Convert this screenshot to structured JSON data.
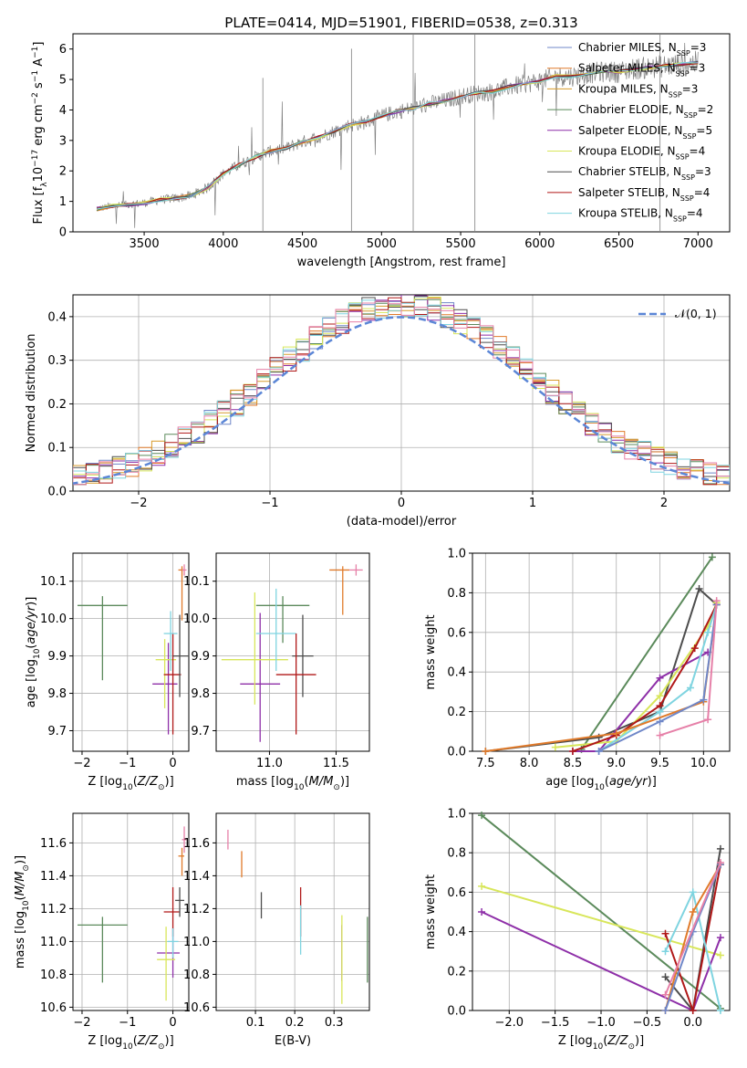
{
  "figure": {
    "title": "PLATE=0414, MJD=51901, FIBERID=0538, z=0.313"
  },
  "model_colors": {
    "Chabrier MILES": "#6f87c8",
    "Salpeter MILES": "#e07a2a",
    "Kroupa MILES": "#d89b2c",
    "Chabrier ELODIE": "#5b8a5b",
    "Salpeter ELODIE": "#8e2fa8",
    "Kroupa ELODIE": "#d8e65a",
    "Chabrier STELIB": "#4d4d4d",
    "Salpeter STELIB": "#b01818",
    "Kroupa STELIB": "#7fd4e0",
    "Pink": "#e680a8",
    "Normal fit": "#5b86d6"
  },
  "chart_data": [
    {
      "id": "spectrum",
      "type": "line",
      "xlabel": "wavelength [Angstrom, rest frame]",
      "ylabel": "Flux [f_λ10^-17 erg cm^-2 s^-1 A^-1]",
      "xlim": [
        3050,
        7200
      ],
      "ylim": [
        0,
        6.5
      ],
      "xticks": [
        3500,
        4000,
        4500,
        5000,
        5500,
        6000,
        6500,
        7000
      ],
      "yticks": [
        0,
        1,
        2,
        3,
        4,
        5,
        6
      ],
      "legend_position": "top-right",
      "legend": [
        {
          "name": "Chabrier MILES",
          "suffix": "=3",
          "color": "#6f87c8"
        },
        {
          "name": "Salpeter MILES",
          "suffix": "=3",
          "color": "#e07a2a"
        },
        {
          "name": "Kroupa MILES",
          "suffix": "=3",
          "color": "#d89b2c"
        },
        {
          "name": "Chabrier ELODIE",
          "suffix": "=2",
          "color": "#5b8a5b"
        },
        {
          "name": "Salpeter ELODIE",
          "suffix": "=5",
          "color": "#8e2fa8"
        },
        {
          "name": "Kroupa ELODIE",
          "suffix": "=4",
          "color": "#d8e65a"
        },
        {
          "name": "Chabrier STELIB",
          "suffix": "=3",
          "color": "#4d4d4d"
        },
        {
          "name": "Salpeter STELIB",
          "suffix": "=4",
          "color": "#b01818"
        },
        {
          "name": "Kroupa STELIB",
          "suffix": "=4",
          "color": "#7fd4e0"
        }
      ],
      "continuum": {
        "x": [
          3200,
          3300,
          3400,
          3500,
          3600,
          3700,
          3800,
          3900,
          4000,
          4100,
          4200,
          4300,
          4400,
          4500,
          4600,
          4700,
          4800,
          4900,
          5000,
          5100,
          5200,
          5300,
          5400,
          5500,
          5600,
          5700,
          5800,
          5900,
          6000,
          6100,
          6200,
          6300,
          6400,
          6500,
          6600,
          6700,
          6800,
          6900,
          7000
        ],
        "y": [
          0.75,
          0.85,
          0.9,
          0.95,
          1.05,
          1.1,
          1.2,
          1.45,
          1.9,
          2.2,
          2.45,
          2.65,
          2.75,
          2.95,
          3.1,
          3.3,
          3.5,
          3.6,
          3.8,
          3.95,
          4.05,
          4.2,
          4.3,
          4.45,
          4.55,
          4.6,
          4.75,
          4.85,
          4.95,
          5.1,
          5.1,
          5.2,
          5.25,
          5.25,
          5.35,
          5.4,
          5.45,
          5.5,
          5.55
        ]
      }
    },
    {
      "id": "residual_histogram",
      "type": "step",
      "xlabel": "(data-model)/error",
      "ylabel": "Normed distribution",
      "xlim": [
        -2.5,
        2.5
      ],
      "ylim": [
        0,
        0.45
      ],
      "xticks": [
        -2,
        -1,
        0,
        1,
        2
      ],
      "yticks": [
        0.0,
        0.1,
        0.2,
        0.3,
        0.4
      ],
      "grid": true,
      "legend_position": "top-right",
      "reference_curve": {
        "name": "𝒩(0, 1)",
        "mean": 0,
        "sigma": 1,
        "style": "dashed"
      }
    },
    {
      "id": "age_vs_metallicity",
      "type": "errorbar",
      "xlabel": "Z [log10(Z/Z☉)]",
      "ylabel": "age  [log10(age/yr)]",
      "xlim": [
        -2.2,
        0.35
      ],
      "ylim": [
        9.645,
        10.175
      ],
      "xticks": [
        -2,
        -1,
        0
      ],
      "yticks": [
        9.7,
        9.8,
        9.9,
        10.0,
        10.1
      ],
      "grid": true,
      "points": [
        {
          "model": "Chabrier ELODIE",
          "x": -1.55,
          "xerr": [
            0.55,
            0.55
          ],
          "y": 10.035,
          "yerr": [
            0.2,
            0.025
          ]
        },
        {
          "model": "Salpeter ELODIE",
          "x": -0.1,
          "xerr": [
            0.35,
            0.2
          ],
          "y": 9.825,
          "yerr": [
            0.135,
            0.11
          ]
        },
        {
          "model": "Kroupa ELODIE",
          "x": -0.18,
          "xerr": [
            0.2,
            0.25
          ],
          "y": 9.89,
          "yerr": [
            0.13,
            0.055
          ]
        },
        {
          "model": "Salpeter STELIB",
          "x": 0.0,
          "xerr": [
            0.2,
            0.18
          ],
          "y": 9.85,
          "yerr": [
            0.16,
            0.11
          ]
        },
        {
          "model": "Chabrier STELIB",
          "x": 0.15,
          "xerr": [
            0.15,
            0.2
          ],
          "y": 9.9,
          "yerr": [
            0.11,
            0.11
          ]
        },
        {
          "model": "Kroupa STELIB",
          "x": -0.05,
          "xerr": [
            0.15,
            0.15
          ],
          "y": 9.96,
          "yerr": [
            0.1,
            0.06
          ]
        },
        {
          "model": "Salpeter MILES",
          "x": 0.2,
          "xerr": [
            0.08,
            0.05
          ],
          "y": 10.13,
          "yerr": [
            0.135,
            0.01
          ]
        },
        {
          "model": "Pink",
          "x": 0.25,
          "xerr": [
            0.05,
            0.05
          ],
          "y": 10.13,
          "yerr": [
            0.015,
            0.015
          ]
        }
      ]
    },
    {
      "id": "age_vs_mass",
      "type": "errorbar",
      "xlabel": "mass [log10(M/M☉)]",
      "ylabel": "",
      "xlim": [
        10.6,
        11.75
      ],
      "ylim": [
        9.645,
        10.175
      ],
      "xticks": [
        11.0,
        11.5
      ],
      "yticks": [
        9.7,
        9.8,
        9.9,
        10.0,
        10.1
      ],
      "grid": true,
      "points": [
        {
          "model": "Chabrier ELODIE",
          "x": 11.1,
          "xerr": [
            0.2,
            0.2
          ],
          "y": 10.035,
          "yerr": [
            0.1,
            0.025
          ]
        },
        {
          "model": "Salpeter ELODIE",
          "x": 10.93,
          "xerr": [
            0.15,
            0.15
          ],
          "y": 9.825,
          "yerr": [
            0.155,
            0.19
          ]
        },
        {
          "model": "Kroupa ELODIE",
          "x": 10.89,
          "xerr": [
            0.25,
            0.25
          ],
          "y": 9.89,
          "yerr": [
            0.12,
            0.18
          ]
        },
        {
          "model": "Kroupa STELIB",
          "x": 11.05,
          "xerr": [
            0.15,
            0.15
          ],
          "y": 9.96,
          "yerr": [
            0.1,
            0.12
          ]
        },
        {
          "model": "Chabrier STELIB",
          "x": 11.25,
          "xerr": [
            0.08,
            0.08
          ],
          "y": 9.9,
          "yerr": [
            0.11,
            0.11
          ]
        },
        {
          "model": "Salpeter STELIB",
          "x": 11.2,
          "xerr": [
            0.15,
            0.15
          ],
          "y": 9.85,
          "yerr": [
            0.16,
            0.11
          ]
        },
        {
          "model": "Salpeter MILES",
          "x": 11.55,
          "xerr": [
            0.1,
            0.05
          ],
          "y": 10.13,
          "yerr": [
            0.12,
            0.01
          ]
        },
        {
          "model": "Pink",
          "x": 11.65,
          "xerr": [
            0.05,
            0.05
          ],
          "y": 10.13,
          "yerr": [
            0.015,
            0.015
          ]
        }
      ]
    },
    {
      "id": "mass_weight_vs_age",
      "type": "line",
      "xlabel": "age  [log10(age/yr)]",
      "ylabel": "mass weight",
      "xlim": [
        7.35,
        10.3
      ],
      "ylim": [
        0,
        1.0
      ],
      "xticks": [
        7.5,
        8.0,
        8.5,
        9.0,
        9.5,
        10.0
      ],
      "yticks": [
        0.0,
        0.2,
        0.4,
        0.6,
        0.8,
        1.0
      ],
      "grid": true,
      "series": [
        {
          "model": "Chabrier ELODIE",
          "x": [
            8.6,
            10.1
          ],
          "y": [
            0.01,
            0.98
          ]
        },
        {
          "model": "Chabrier STELIB",
          "x": [
            7.5,
            8.8,
            9.5,
            9.95,
            10.15
          ],
          "y": [
            0.0,
            0.07,
            0.2,
            0.82,
            0.74
          ]
        },
        {
          "model": "Salpeter ELODIE",
          "x": [
            8.5,
            8.8,
            9.5,
            10.05
          ],
          "y": [
            0.0,
            0.0,
            0.37,
            0.5
          ]
        },
        {
          "model": "Kroupa ELODIE",
          "x": [
            8.3,
            9.0,
            9.5,
            10.05,
            10.15
          ],
          "y": [
            0.02,
            0.05,
            0.28,
            0.63,
            0.75
          ]
        },
        {
          "model": "Salpeter STELIB",
          "x": [
            8.5,
            9.0,
            9.5,
            9.9,
            10.15
          ],
          "y": [
            0.0,
            0.08,
            0.23,
            0.52,
            0.74
          ]
        },
        {
          "model": "Kroupa STELIB",
          "x": [
            8.8,
            9.5,
            9.85,
            10.05,
            10.15
          ],
          "y": [
            0.0,
            0.2,
            0.32,
            0.6,
            0.74
          ]
        },
        {
          "model": "Salpeter MILES",
          "x": [
            7.5,
            9.0,
            10.0,
            10.15
          ],
          "y": [
            0.0,
            0.09,
            0.25,
            0.74
          ]
        },
        {
          "model": "Chabrier MILES",
          "x": [
            8.8,
            9.5,
            10.0,
            10.15
          ],
          "y": [
            0.0,
            0.15,
            0.26,
            0.74
          ]
        },
        {
          "model": "Pink",
          "x": [
            9.5,
            10.05,
            10.15
          ],
          "y": [
            0.08,
            0.16,
            0.76
          ]
        }
      ]
    },
    {
      "id": "mass_vs_metallicity",
      "type": "errorbar",
      "xlabel": "Z [log10(Z/Z☉)]",
      "ylabel": "mass [log10(M/M☉)]",
      "xlim": [
        -2.2,
        0.35
      ],
      "ylim": [
        10.58,
        11.78
      ],
      "xticks": [
        -2,
        -1,
        0
      ],
      "yticks": [
        10.6,
        10.8,
        11.0,
        11.2,
        11.4,
        11.6
      ],
      "grid": true,
      "points": [
        {
          "model": "Chabrier ELODIE",
          "x": -1.55,
          "xerr": [
            0.55,
            0.55
          ],
          "y": 11.1,
          "yerr": [
            0.35,
            0.05
          ]
        },
        {
          "model": "Salpeter ELODIE",
          "x": 0.0,
          "xerr": [
            0.35,
            0.15
          ],
          "y": 10.93,
          "yerr": [
            0.15,
            0.15
          ]
        },
        {
          "model": "Kroupa ELODIE",
          "x": -0.15,
          "xerr": [
            0.2,
            0.2
          ],
          "y": 10.89,
          "yerr": [
            0.25,
            0.2
          ]
        },
        {
          "model": "Salpeter STELIB",
          "x": 0.0,
          "xerr": [
            0.2,
            0.15
          ],
          "y": 11.18,
          "yerr": [
            0.15,
            0.15
          ]
        },
        {
          "model": "Chabrier STELIB",
          "x": 0.15,
          "xerr": [
            0.1,
            0.1
          ],
          "y": 11.25,
          "yerr": [
            0.1,
            0.08
          ]
        },
        {
          "model": "Kroupa STELIB",
          "x": 0.0,
          "xerr": [
            0.12,
            0.12
          ],
          "y": 11.0,
          "yerr": [
            0.1,
            0.08
          ]
        },
        {
          "model": "Salpeter MILES",
          "x": 0.2,
          "xerr": [
            0.08,
            0.05
          ],
          "y": 11.52,
          "yerr": [
            0.12,
            0.05
          ]
        },
        {
          "model": "Pink",
          "x": 0.25,
          "xerr": [
            0.05,
            0.05
          ],
          "y": 11.62,
          "yerr": [
            0.08,
            0.08
          ]
        }
      ]
    },
    {
      "id": "mass_vs_ebv",
      "type": "errorbar",
      "xlabel": "E(B-V)",
      "ylabel": "",
      "xlim": [
        0.0,
        0.39
      ],
      "ylim": [
        10.58,
        11.78
      ],
      "xticks": [
        0.1,
        0.2,
        0.3
      ],
      "yticks": [
        10.6,
        10.8,
        11.0,
        11.2,
        11.4,
        11.6
      ],
      "grid": true,
      "points": [
        {
          "model": "Pink",
          "x": 0.03,
          "xerr": [
            0,
            0
          ],
          "y": 11.62,
          "yerr": [
            0.06,
            0.06
          ]
        },
        {
          "model": "Salpeter MILES",
          "x": 0.065,
          "xerr": [
            0,
            0
          ],
          "y": 11.47,
          "yerr": [
            0.08,
            0.08
          ]
        },
        {
          "model": "Chabrier STELIB",
          "x": 0.115,
          "xerr": [
            0,
            0
          ],
          "y": 11.22,
          "yerr": [
            0.08,
            0.08
          ]
        },
        {
          "model": "Salpeter STELIB",
          "x": 0.215,
          "xerr": [
            0,
            0
          ],
          "y": 11.18,
          "yerr": [
            0.15,
            0.15
          ]
        },
        {
          "model": "Kroupa STELIB",
          "x": 0.215,
          "xerr": [
            0,
            0
          ],
          "y": 11.07,
          "yerr": [
            0.15,
            0.15
          ]
        },
        {
          "model": "Salpeter ELODIE",
          "x": 0.32,
          "xerr": [
            0,
            0
          ],
          "y": 10.93,
          "yerr": [
            0.17,
            0.17
          ]
        },
        {
          "model": "Kroupa ELODIE",
          "x": 0.32,
          "xerr": [
            0,
            0
          ],
          "y": 10.89,
          "yerr": [
            0.27,
            0.27
          ]
        },
        {
          "model": "Chabrier ELODIE",
          "x": 0.385,
          "xerr": [
            0,
            0
          ],
          "y": 10.95,
          "yerr": [
            0.2,
            0.2
          ]
        }
      ]
    },
    {
      "id": "mass_weight_vs_metallicity",
      "type": "line",
      "xlabel": "Z [log10(Z/Z☉)]",
      "ylabel": "mass weight",
      "xlim": [
        -2.4,
        0.4
      ],
      "ylim": [
        0,
        1.0
      ],
      "xticks": [
        -2.0,
        -1.5,
        -1.0,
        -0.5,
        0.0
      ],
      "yticks": [
        0.0,
        0.2,
        0.4,
        0.6,
        0.8,
        1.0
      ],
      "grid": true,
      "series": [
        {
          "model": "Chabrier ELODIE",
          "x": [
            -2.3,
            0.3
          ],
          "y": [
            0.99,
            0.01
          ]
        },
        {
          "model": "Kroupa ELODIE",
          "x": [
            -2.3,
            0.3
          ],
          "y": [
            0.63,
            0.28
          ]
        },
        {
          "model": "Salpeter ELODIE",
          "x": [
            -2.3,
            0.0,
            0.3
          ],
          "y": [
            0.5,
            0.0,
            0.37
          ]
        },
        {
          "model": "Chabrier STELIB",
          "x": [
            -0.3,
            0.0,
            0.3
          ],
          "y": [
            0.17,
            0.0,
            0.82
          ]
        },
        {
          "model": "Salpeter STELIB",
          "x": [
            -0.3,
            0.0,
            0.3
          ],
          "y": [
            0.39,
            0.0,
            0.74
          ]
        },
        {
          "model": "Kroupa STELIB",
          "x": [
            -0.3,
            0.0,
            0.3
          ],
          "y": [
            0.3,
            0.6,
            0.0
          ]
        },
        {
          "model": "Salpeter MILES",
          "x": [
            -0.3,
            0.0,
            0.3
          ],
          "y": [
            0.0,
            0.5,
            0.74
          ]
        },
        {
          "model": "Chabrier MILES",
          "x": [
            -0.3,
            0.0,
            0.3
          ],
          "y": [
            0.0,
            0.4,
            0.74
          ]
        },
        {
          "model": "Pink",
          "x": [
            -0.3,
            0.3
          ],
          "y": [
            0.08,
            0.75
          ]
        }
      ]
    }
  ]
}
